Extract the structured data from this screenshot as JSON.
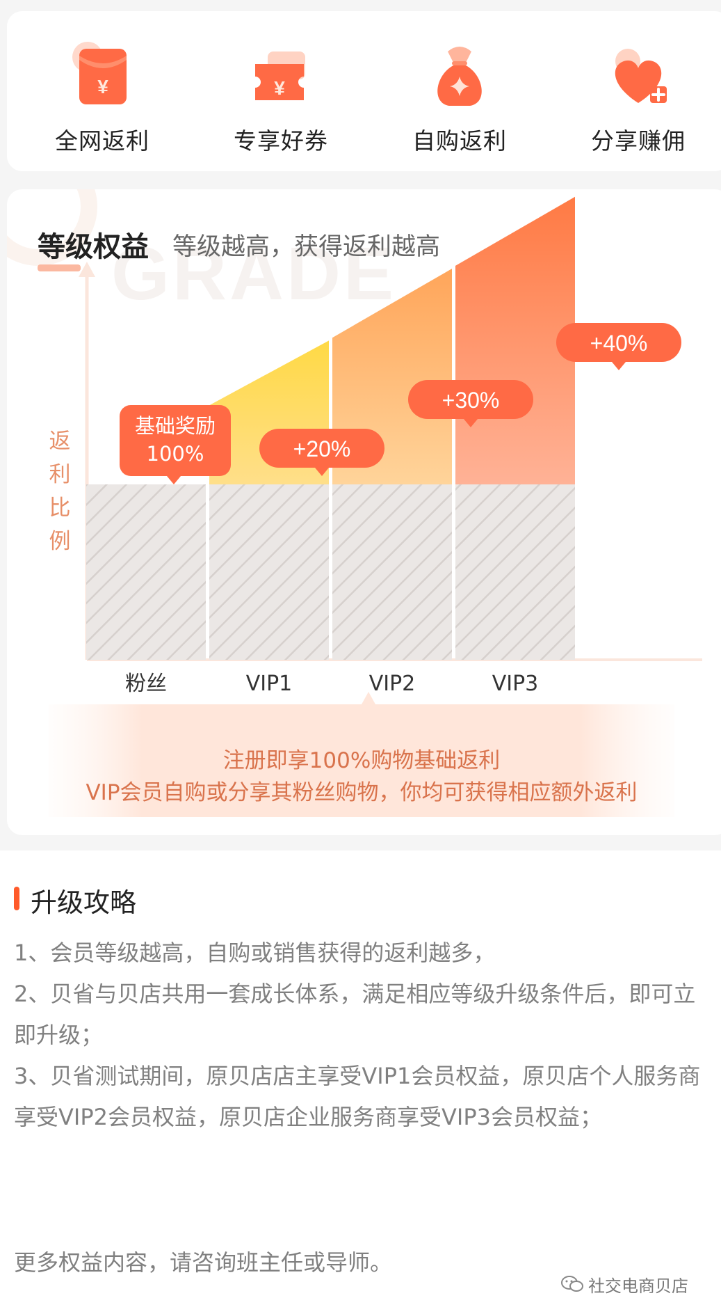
{
  "benefits": [
    {
      "label": "全网返利",
      "icon": "red-envelope-icon"
    },
    {
      "label": "专享好券",
      "icon": "coupon-icon"
    },
    {
      "label": "自购返利",
      "icon": "money-bag-icon"
    },
    {
      "label": "分享赚佣",
      "icon": "heart-plus-icon"
    }
  ],
  "grade": {
    "background_word": "GRADE",
    "title": "等级权益",
    "subtitle": "等级越高，获得返利越高",
    "y_axis_label": "返利比例",
    "hint_line1": "注册即享100%购物基础返利",
    "hint_line2": "VIP会员自购或分享其粉丝购物，你均可获得相应额外返利"
  },
  "chart_data": {
    "type": "bar",
    "categories": [
      "粉丝",
      "VIP1",
      "VIP2",
      "VIP3"
    ],
    "series": [
      {
        "values": [
          100,
          100,
          100,
          100
        ]
      },
      {
        "values": [
          0,
          20,
          30,
          40
        ]
      }
    ],
    "data_labels": [
      "基础奖励\n100%",
      "+20%",
      "+30%",
      "+40%"
    ],
    "ylabel": "返利比例",
    "colors": {
      "base": "#e6e1df",
      "vip1": "#ffd54a",
      "vip2": "#ffaa5e",
      "vip3": "#ff7d4a",
      "bubble": "#ff6a45"
    }
  },
  "strategy": {
    "title": "升级攻略",
    "lines": [
      "1、会员等级越高，自购或销售获得的返利越多，",
      "2、贝省与贝店共用一套成长体系，满足相应等级升级条件后，即可立即升级；",
      "3、贝省测试期间，原贝店店主享受VIP1会员权益，原贝店个人服务商享受VIP2会员权益，原贝店企业服务商享受VIP3会员权益；"
    ],
    "more": "更多权益内容，请咨询班主任或导师。"
  },
  "watermark": "社交电商贝店",
  "colors": {
    "accent": "#ff5a2a",
    "hint_text": "#d9734c"
  }
}
